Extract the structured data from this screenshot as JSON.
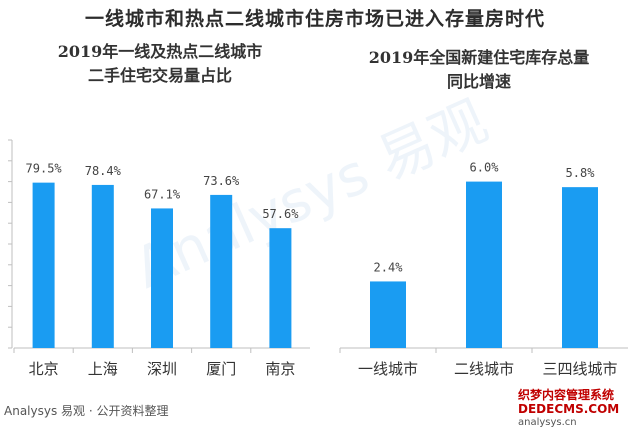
{
  "title": "一线城市和热点二线城市住房市场已进入存量房时代",
  "charts": [
    {
      "title_lines": [
        "2019年一线及热点二线城市",
        "二手住宅交易量占比"
      ],
      "bar_color": "#1a9cf2",
      "unit": "%",
      "chart_data": {
        "type": "bar",
        "title": "2019年一线及热点二线城市二手住宅交易量占比",
        "categories": [
          "北京",
          "上海",
          "深圳",
          "厦门",
          "南京"
        ],
        "values": [
          79.5,
          78.4,
          67.1,
          73.6,
          57.6
        ],
        "value_labels": [
          "79.5%",
          "78.4%",
          "67.1%",
          "73.6%",
          "57.6%"
        ],
        "ylim": [
          0,
          100
        ],
        "grid": false
      }
    },
    {
      "title_lines": [
        "2019年全国新建住宅库存总量",
        "同比增速"
      ],
      "bar_color": "#1a9cf2",
      "unit": "%",
      "chart_data": {
        "type": "bar",
        "title": "2019年全国新建住宅库存总量同比增速",
        "categories": [
          "一线城市",
          "二线城市",
          "三四线城市"
        ],
        "values": [
          2.4,
          6.0,
          5.8
        ],
        "value_labels": [
          "2.4%",
          "6.0%",
          "5.8%"
        ],
        "ylim": [
          0,
          7.5
        ],
        "grid": false
      }
    }
  ],
  "source": "Analysys 易观 · 公开资料整理",
  "watermark": "Analysys 易观",
  "footer_brand": {
    "name": "织梦内容管理系统",
    "url": "DEDECMS.COM",
    "sub": "analysys.cn"
  }
}
